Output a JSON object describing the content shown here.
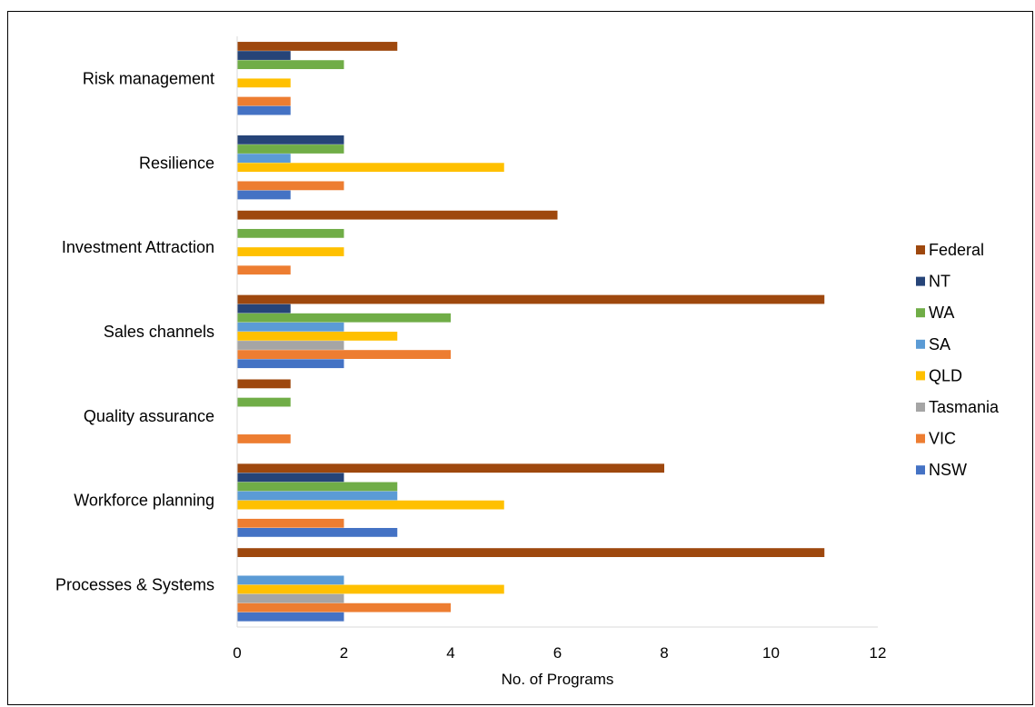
{
  "chart_data": {
    "type": "bar",
    "orientation": "horizontal",
    "xlabel": "No. of Programs",
    "ylabel": "",
    "xlim": [
      0,
      12
    ],
    "xticks": [
      0,
      2,
      4,
      6,
      8,
      10,
      12
    ],
    "grid": false,
    "legend_position": "right",
    "categories": [
      "Risk management",
      "Resilience",
      "Investment Attraction",
      "Sales channels",
      "Quality assurance",
      "Workforce planning",
      "Processes & Systems"
    ],
    "series": [
      {
        "name": "Federal",
        "color": "#9e480e",
        "values": [
          3,
          0,
          6,
          11,
          1,
          8,
          11
        ]
      },
      {
        "name": "NT",
        "color": "#264478",
        "values": [
          1,
          2,
          0,
          1,
          0,
          2,
          0
        ]
      },
      {
        "name": "WA",
        "color": "#70ad47",
        "values": [
          2,
          2,
          2,
          4,
          1,
          3,
          0
        ]
      },
      {
        "name": "SA",
        "color": "#5b9bd5",
        "values": [
          0,
          1,
          0,
          2,
          0,
          3,
          2
        ]
      },
      {
        "name": "QLD",
        "color": "#ffc000",
        "values": [
          1,
          5,
          2,
          3,
          0,
          5,
          5
        ]
      },
      {
        "name": "Tasmania",
        "color": "#a5a5a5",
        "values": [
          0,
          0,
          0,
          2,
          0,
          0,
          2
        ]
      },
      {
        "name": "VIC",
        "color": "#ed7d31",
        "values": [
          1,
          2,
          1,
          4,
          1,
          2,
          4
        ]
      },
      {
        "name": "NSW",
        "color": "#4472c4",
        "values": [
          1,
          1,
          0,
          2,
          0,
          3,
          2
        ]
      }
    ]
  }
}
